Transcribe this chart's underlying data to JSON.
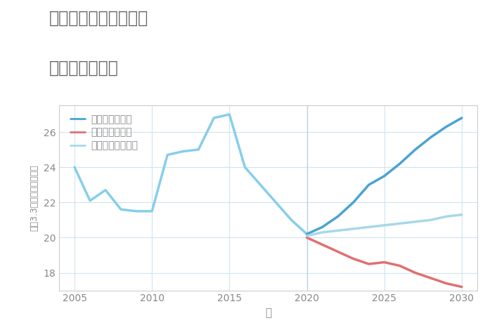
{
  "title_line1": "奈良県天理市渋谷町の",
  "title_line2": "土地の価格推移",
  "xlabel": "年",
  "ylabel": "平（3.3㎡）単価（万円）",
  "ylim": [
    17,
    27.5
  ],
  "xlim": [
    2004,
    2031
  ],
  "yticks": [
    18,
    20,
    22,
    24,
    26
  ],
  "xticks": [
    2005,
    2010,
    2015,
    2020,
    2025,
    2030
  ],
  "historical": {
    "years": [
      2005,
      2006,
      2007,
      2008,
      2009,
      2010,
      2011,
      2012,
      2013,
      2014,
      2015,
      2016,
      2017,
      2018,
      2019,
      2020
    ],
    "values": [
      24.0,
      22.1,
      22.7,
      21.6,
      21.5,
      21.5,
      24.7,
      24.9,
      25.0,
      26.8,
      27.0,
      24.0,
      23.0,
      22.0,
      21.0,
      20.2
    ]
  },
  "good_scenario": {
    "years": [
      2020,
      2021,
      2022,
      2023,
      2024,
      2025,
      2026,
      2027,
      2028,
      2029,
      2030
    ],
    "values": [
      20.2,
      20.6,
      21.2,
      22.0,
      23.0,
      23.5,
      24.2,
      25.0,
      25.7,
      26.3,
      26.8
    ]
  },
  "bad_scenario": {
    "years": [
      2020,
      2021,
      2022,
      2023,
      2024,
      2025,
      2026,
      2027,
      2028,
      2029,
      2030
    ],
    "values": [
      20.0,
      19.6,
      19.2,
      18.8,
      18.5,
      18.6,
      18.4,
      18.0,
      17.7,
      17.4,
      17.2
    ]
  },
  "normal_scenario": {
    "years": [
      2020,
      2021,
      2022,
      2023,
      2024,
      2025,
      2026,
      2027,
      2028,
      2029,
      2030
    ],
    "values": [
      20.1,
      20.3,
      20.4,
      20.5,
      20.6,
      20.7,
      20.8,
      20.9,
      21.0,
      21.2,
      21.3
    ]
  },
  "color_historical": "#87CEEB",
  "color_good": "#4BA3D3",
  "color_bad": "#E07070",
  "color_normal": "#A8D8E8",
  "legend_labels": [
    "グッドシナリオ",
    "バッドシナリオ",
    "ノーマルシナリオ"
  ],
  "background_color": "#ffffff",
  "grid_color": "#d0e4f0",
  "title_color": "#666666",
  "axis_color": "#888888",
  "vline_x": 2020
}
